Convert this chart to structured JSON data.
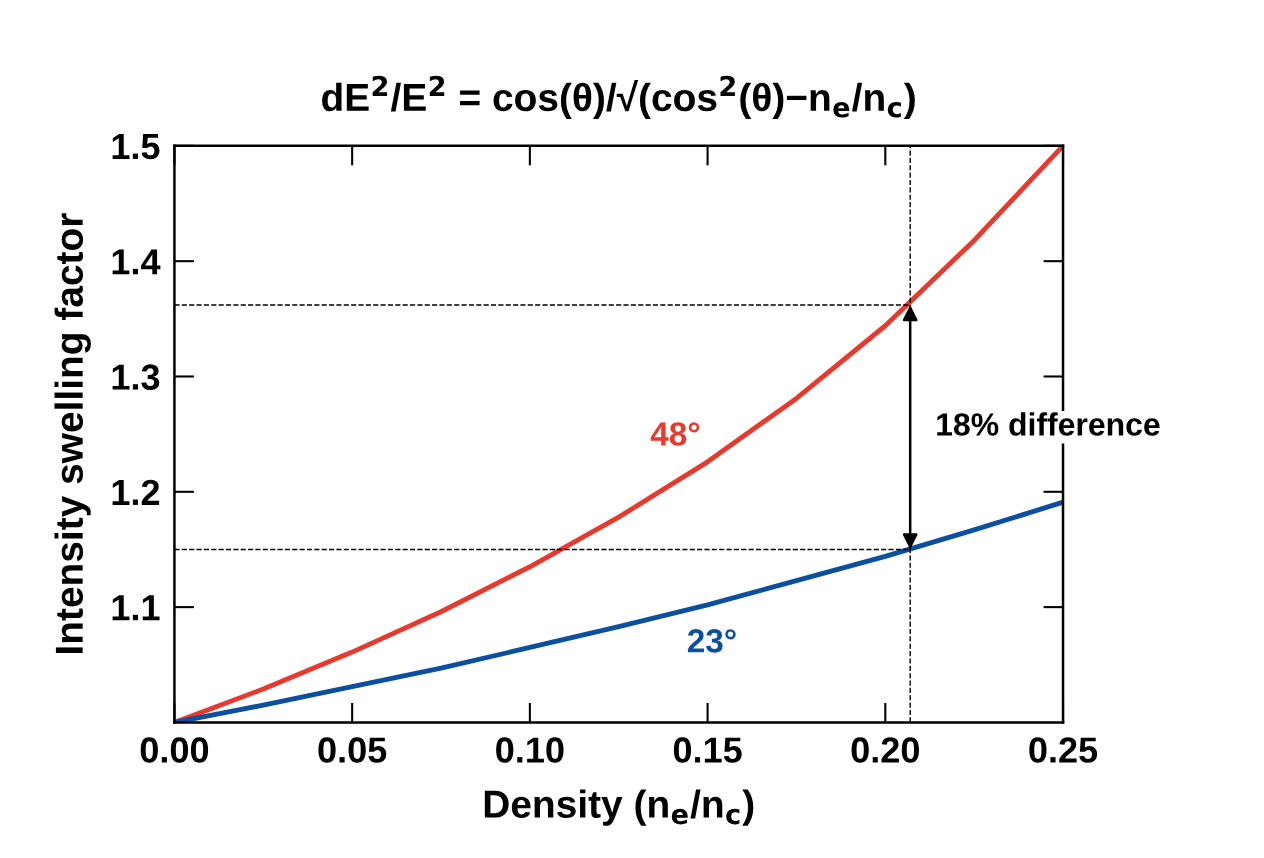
{
  "chart_data": {
    "type": "line",
    "title": "dE$^{2}$/E$^{2}$ = cos(θ)/√(cos$^{2}$(θ)−n$_{e}$/n$_{c}$)",
    "xlabel": "Density (n$_{e}$/n$_{c}$)",
    "ylabel": "Intensity swelling factor",
    "x": [
      0,
      0.025,
      0.05,
      0.075,
      0.1,
      0.125,
      0.15,
      0.175,
      0.2,
      0.225,
      0.25
    ],
    "series": [
      {
        "name": "48°",
        "color": "#e8392f",
        "values": [
          1.0,
          1.029,
          1.061,
          1.096,
          1.135,
          1.178,
          1.226,
          1.281,
          1.344,
          1.418,
          1.5
        ]
      },
      {
        "name": "23°",
        "color": "#0a4fa0",
        "values": [
          1.0,
          1.015,
          1.031,
          1.047,
          1.065,
          1.083,
          1.102,
          1.123,
          1.144,
          1.167,
          1.191
        ]
      }
    ],
    "xlim": [
      0,
      0.25
    ],
    "xticks": [
      {
        "value": 0,
        "label": "0.00"
      },
      {
        "value": 0.05,
        "label": "0.05"
      },
      {
        "value": 0.1,
        "label": "0.10"
      },
      {
        "value": 0.15,
        "label": "0.15"
      },
      {
        "value": 0.2,
        "label": "0.20"
      },
      {
        "value": 0.25,
        "label": "0.25"
      }
    ],
    "ylim": [
      1.0,
      1.5
    ],
    "yticks": [
      1.1,
      1.2,
      1.3,
      1.4,
      1.5
    ],
    "ref_lines": [
      {
        "axis": "y",
        "value": 1.362,
        "line_style": "dashed",
        "color": "#000000"
      },
      {
        "axis": "y",
        "value": 1.15,
        "line_style": "dashed",
        "color": "#000000"
      },
      {
        "axis": "x",
        "value": 0.207,
        "line_style": "dashed",
        "color": "#000000"
      }
    ],
    "annotations": [
      {
        "text": "18% difference",
        "x": 0.207,
        "y": 1.256
      }
    ],
    "grid": false,
    "legend": false,
    "marker": "none",
    "line_style": "solid"
  }
}
